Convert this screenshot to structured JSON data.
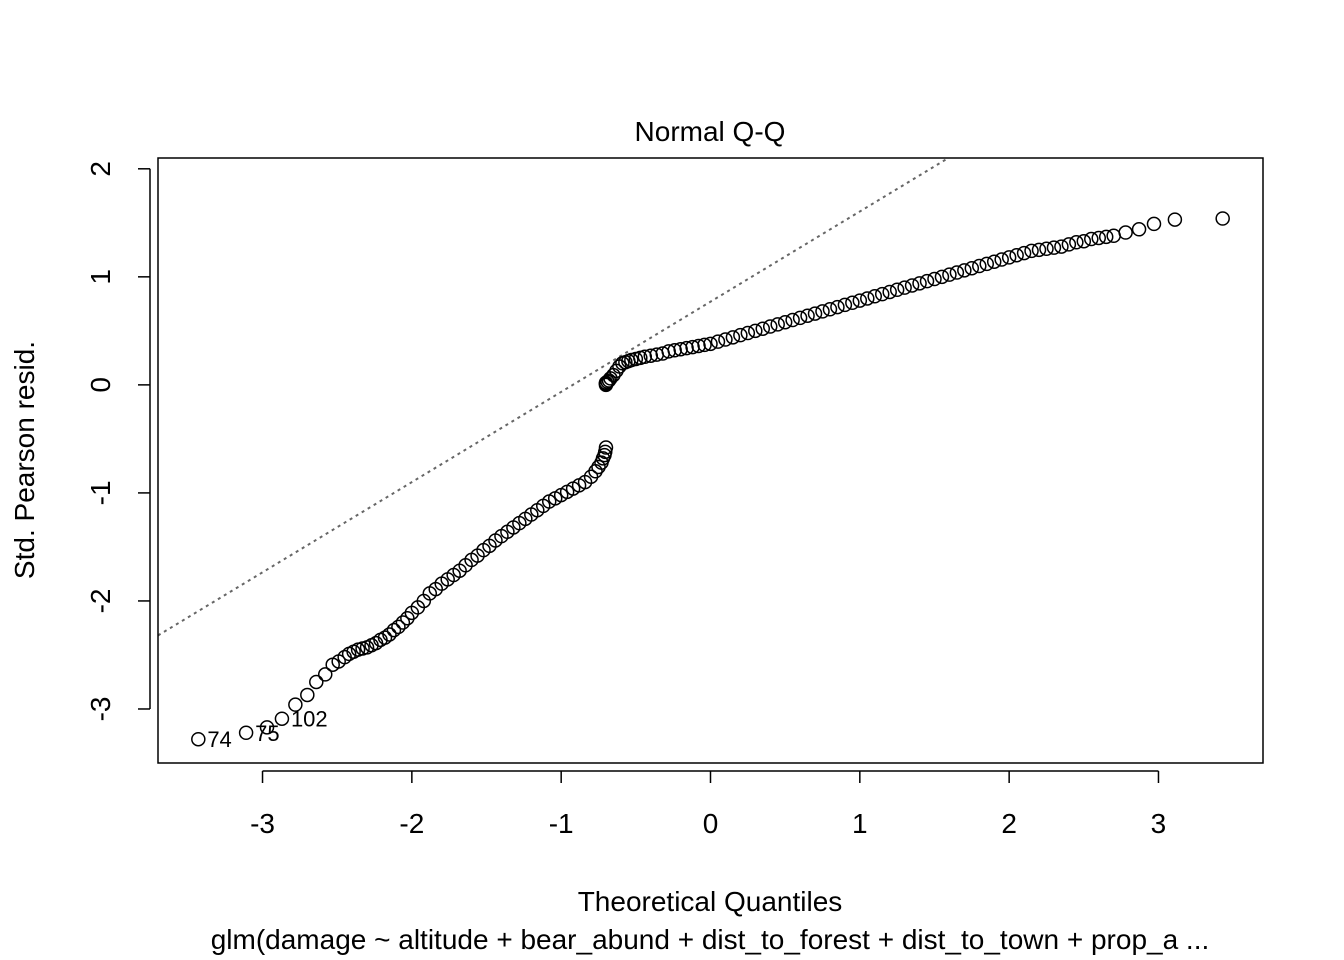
{
  "chart_data": {
    "type": "scatter",
    "title": "Normal Q-Q",
    "xlabel": "Theoretical Quantiles",
    "ylabel": "Std. Pearson resid.",
    "subtitle": "glm(damage ~ altitude + bear_abund + dist_to_forest + dist_to_town + prop_a ...",
    "xlim": [
      -3.7,
      3.7
    ],
    "ylim": [
      -3.5,
      2.1
    ],
    "x_ticks": [
      -3,
      -2,
      -1,
      0,
      1,
      2,
      3
    ],
    "y_ticks": [
      -3,
      -2,
      -1,
      0,
      1,
      2
    ],
    "grid": false,
    "reference_line": {
      "slope": 0.835,
      "intercept": 0.77,
      "style": "dotted",
      "color": "#666666"
    },
    "point_labels": [
      {
        "label": "74",
        "x": -3.43,
        "y": -3.28
      },
      {
        "label": "75",
        "x": -3.11,
        "y": -3.22
      },
      {
        "label": "102",
        "x": -2.87,
        "y": -3.09
      }
    ],
    "series": [
      {
        "x": [
          -3.43,
          -3.11,
          -2.97,
          -2.87,
          -2.78,
          -2.7,
          -2.64,
          -2.58,
          -2.53,
          -2.49,
          -2.45,
          -2.42,
          -2.39,
          -2.36,
          -2.33,
          -2.3,
          -2.27,
          -2.24,
          -2.21,
          -2.18,
          -2.15,
          -2.12,
          -2.09,
          -2.06,
          -2.03,
          -2.0,
          -1.96,
          -1.92,
          -1.88,
          -1.84,
          -1.8,
          -1.76,
          -1.72,
          -1.68,
          -1.64,
          -1.6,
          -1.56,
          -1.52,
          -1.48,
          -1.44,
          -1.4,
          -1.36,
          -1.32,
          -1.28,
          -1.24,
          -1.2,
          -1.16,
          -1.12,
          -1.08,
          -1.04,
          -1.0,
          -0.96,
          -0.92,
          -0.88,
          -0.84,
          -0.8,
          -0.77,
          -0.75,
          -0.73,
          -0.72,
          -0.71,
          -0.705,
          -0.7,
          -0.7,
          -0.7,
          -0.7,
          -0.7,
          -0.69,
          -0.68,
          -0.67,
          -0.65,
          -0.63,
          -0.61,
          -0.59,
          -0.57,
          -0.55,
          -0.53,
          -0.5,
          -0.47,
          -0.44,
          -0.4,
          -0.36,
          -0.32,
          -0.28,
          -0.24,
          -0.2,
          -0.16,
          -0.12,
          -0.08,
          -0.04,
          0.0,
          0.05,
          0.1,
          0.15,
          0.2,
          0.25,
          0.3,
          0.35,
          0.4,
          0.45,
          0.5,
          0.55,
          0.6,
          0.65,
          0.7,
          0.75,
          0.8,
          0.85,
          0.9,
          0.95,
          1.0,
          1.05,
          1.1,
          1.15,
          1.2,
          1.25,
          1.3,
          1.35,
          1.4,
          1.45,
          1.5,
          1.55,
          1.6,
          1.65,
          1.7,
          1.75,
          1.8,
          1.85,
          1.9,
          1.95,
          2.0,
          2.05,
          2.1,
          2.15,
          2.2,
          2.25,
          2.3,
          2.35,
          2.4,
          2.45,
          2.5,
          2.55,
          2.6,
          2.65,
          2.7,
          2.78,
          2.87,
          2.97,
          3.11,
          3.43
        ],
        "y": [
          -3.28,
          -3.22,
          -3.17,
          -3.09,
          -2.96,
          -2.87,
          -2.75,
          -2.68,
          -2.59,
          -2.56,
          -2.52,
          -2.49,
          -2.47,
          -2.45,
          -2.44,
          -2.43,
          -2.41,
          -2.39,
          -2.36,
          -2.34,
          -2.31,
          -2.27,
          -2.24,
          -2.2,
          -2.16,
          -2.11,
          -2.06,
          -2.0,
          -1.93,
          -1.89,
          -1.84,
          -1.8,
          -1.76,
          -1.72,
          -1.67,
          -1.62,
          -1.58,
          -1.53,
          -1.49,
          -1.44,
          -1.4,
          -1.36,
          -1.32,
          -1.28,
          -1.24,
          -1.2,
          -1.16,
          -1.12,
          -1.08,
          -1.05,
          -1.02,
          -0.99,
          -0.96,
          -0.93,
          -0.9,
          -0.85,
          -0.8,
          -0.76,
          -0.72,
          -0.68,
          -0.65,
          -0.62,
          -0.58,
          0.0,
          0.01,
          0.01,
          0.02,
          0.03,
          0.04,
          0.06,
          0.09,
          0.13,
          0.17,
          0.2,
          0.21,
          0.22,
          0.23,
          0.24,
          0.25,
          0.26,
          0.27,
          0.28,
          0.29,
          0.31,
          0.32,
          0.33,
          0.34,
          0.35,
          0.36,
          0.37,
          0.38,
          0.4,
          0.42,
          0.44,
          0.46,
          0.48,
          0.5,
          0.52,
          0.54,
          0.56,
          0.58,
          0.6,
          0.62,
          0.64,
          0.66,
          0.68,
          0.7,
          0.72,
          0.74,
          0.76,
          0.78,
          0.8,
          0.82,
          0.84,
          0.86,
          0.88,
          0.9,
          0.92,
          0.94,
          0.96,
          0.98,
          1.0,
          1.02,
          1.04,
          1.06,
          1.08,
          1.1,
          1.12,
          1.14,
          1.16,
          1.18,
          1.2,
          1.22,
          1.24,
          1.25,
          1.26,
          1.27,
          1.28,
          1.3,
          1.32,
          1.33,
          1.35,
          1.36,
          1.37,
          1.38,
          1.41,
          1.44,
          1.49,
          1.53,
          1.54
        ]
      }
    ]
  }
}
